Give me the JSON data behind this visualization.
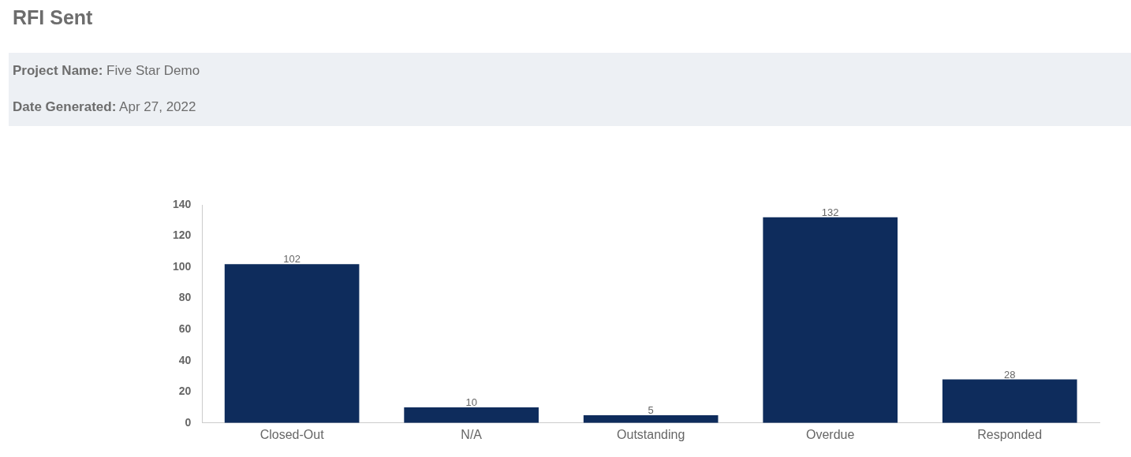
{
  "chart_data": {
    "type": "bar",
    "title": "RFI Sent",
    "annotations": [
      "Project Name: Five Star Demo",
      "Date Generated: Apr 27, 2022"
    ],
    "categories": [
      "Closed-Out",
      "N/A",
      "Outstanding",
      "Overdue",
      "Responded"
    ],
    "values": [
      102,
      10,
      5,
      132,
      28
    ],
    "color": "#0e2c5c",
    "ylim": [
      0,
      140
    ],
    "yticks": [
      0,
      20,
      40,
      60,
      80,
      100,
      120,
      140
    ],
    "grid": false,
    "legend": false,
    "data_labels": true
  }
}
